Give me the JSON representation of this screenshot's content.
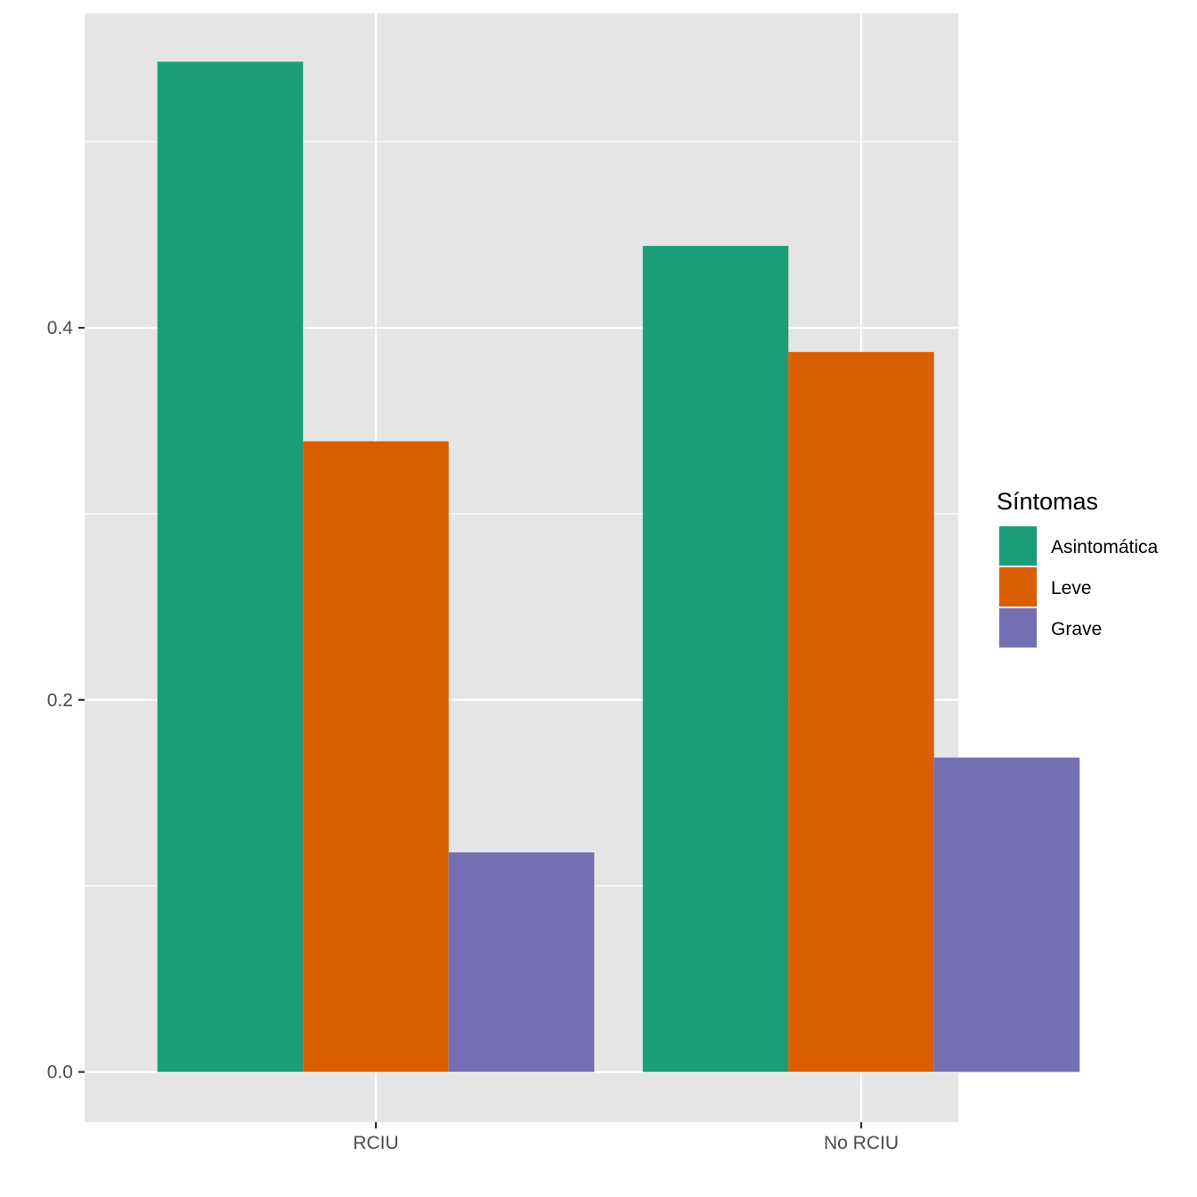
{
  "chart_data": {
    "type": "bar",
    "title": "",
    "xlabel": "",
    "ylabel": "",
    "categories": [
      "RCIU",
      "No RCIU"
    ],
    "series": [
      {
        "name": "Asintomática",
        "values": [
          0.543,
          0.444
        ],
        "color": "#1b9e77"
      },
      {
        "name": "Leve",
        "values": [
          0.339,
          0.387
        ],
        "color": "#d95f02"
      },
      {
        "name": "Grave",
        "values": [
          0.118,
          0.169
        ],
        "color": "#7570b3"
      }
    ],
    "ylim": [
      -0.027,
      0.569
    ],
    "yticks": [
      0.0,
      0.2,
      0.4
    ],
    "ytick_labels": [
      "0.0",
      "0.2",
      "0.4"
    ],
    "legend": {
      "title": "Síntomas",
      "position": "right"
    },
    "grid": true,
    "panel_background": "#e5e5e5"
  }
}
